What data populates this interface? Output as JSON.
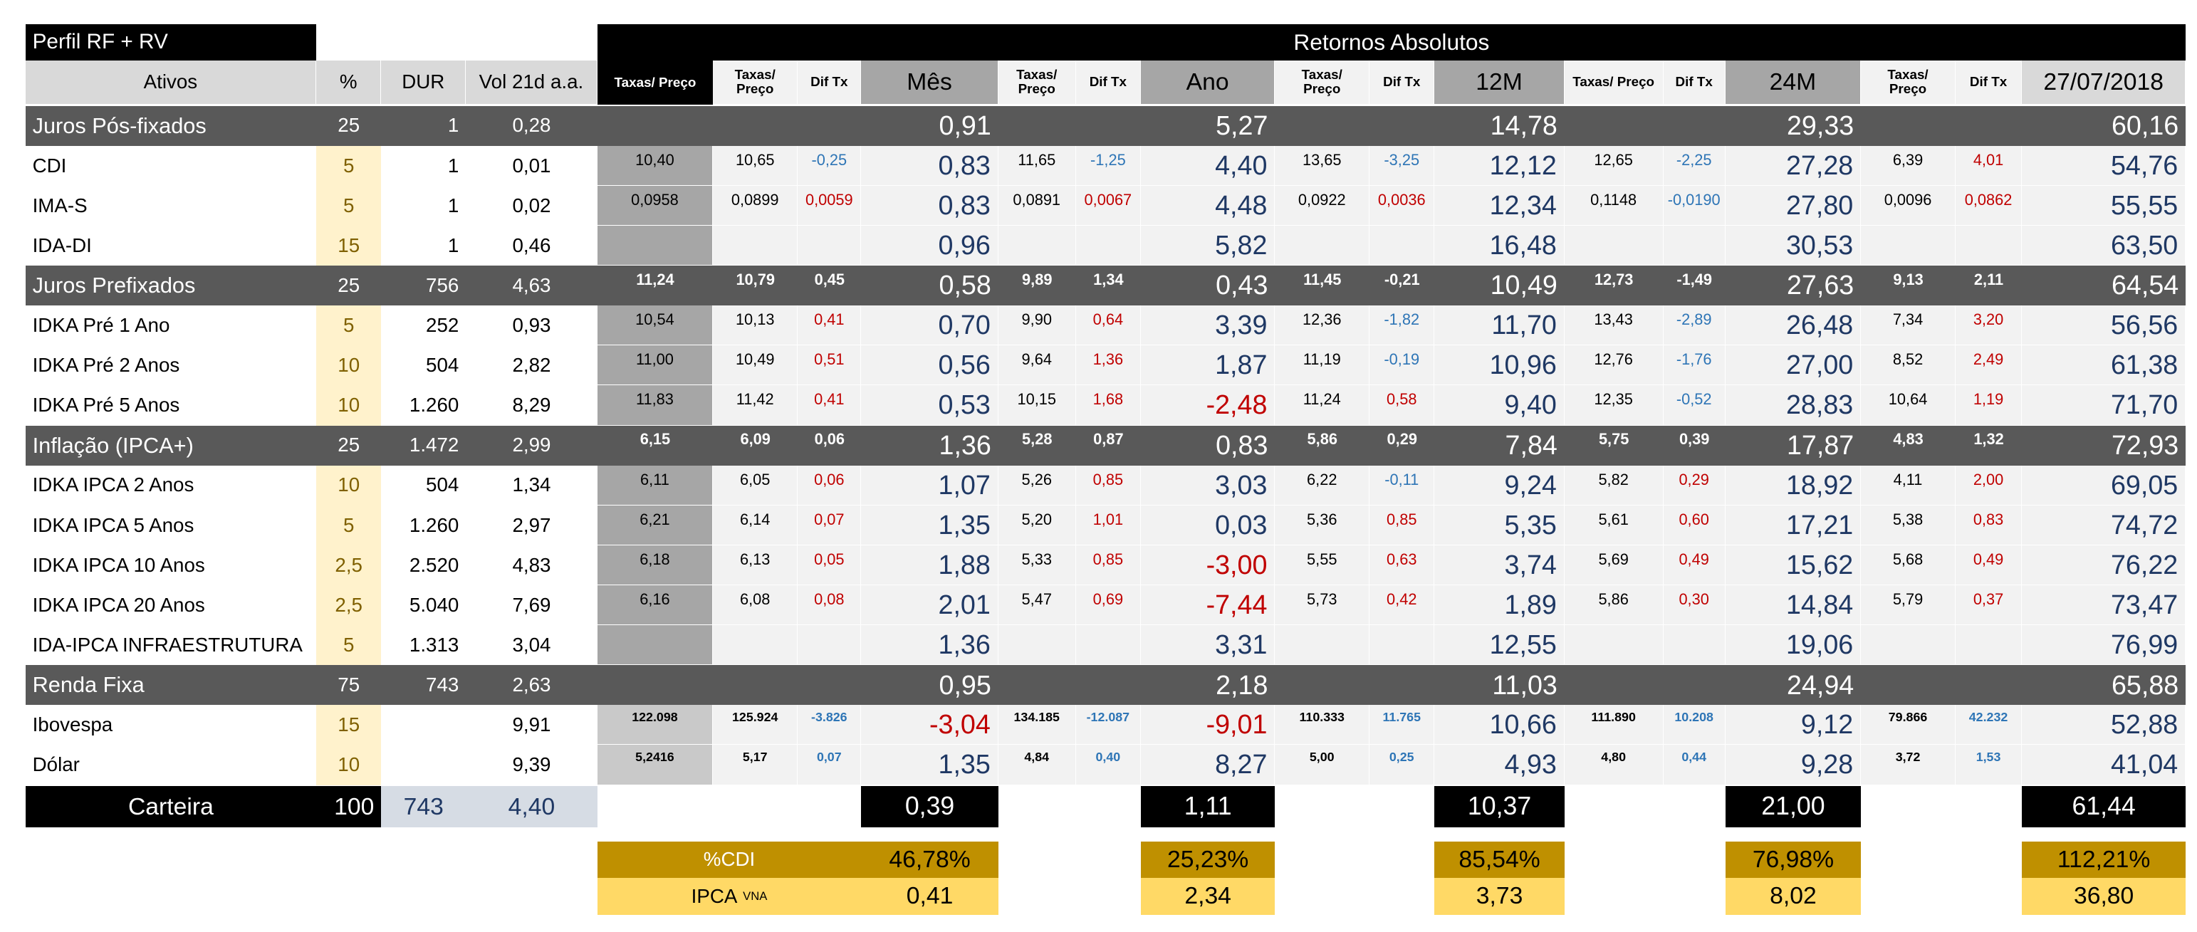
{
  "header": {
    "title": "Perfil RF + RV",
    "section_title": "Retornos Absolutos"
  },
  "columns": [
    "Ativos",
    "%",
    "DUR",
    "Vol 21d a.a.",
    "Taxas/ Preço",
    "Taxas/ Preço",
    "Dif Tx",
    "Mês",
    "Taxas/ Preço",
    "Dif Tx",
    "Ano",
    "Taxas/ Preço",
    "Dif Tx",
    "12M",
    "Taxas/ Preço",
    "Dif Tx",
    "24M",
    "Taxas/ Preço",
    "Dif Tx",
    "27/07/2018"
  ],
  "rows": [
    [
      "Juros Pós-fixados",
      "25",
      "1",
      "0,28",
      null,
      null,
      null,
      "0,91",
      null,
      null,
      "5,27",
      null,
      null,
      "14,78",
      null,
      null,
      "29,33",
      null,
      null,
      "60,16"
    ],
    [
      "CDI",
      "5",
      "1",
      "0,01",
      "10,40",
      "10,65",
      "-0,25",
      "0,83",
      "11,65",
      "-1,25",
      "4,40",
      "13,65",
      "-3,25",
      "12,12",
      "12,65",
      "-2,25",
      "27,28",
      "6,39",
      "4,01",
      "54,76"
    ],
    [
      "IMA-S",
      "5",
      "1",
      "0,02",
      "0,0958",
      "0,0899",
      "0,0059",
      "0,83",
      "0,0891",
      "0,0067",
      "4,48",
      "0,0922",
      "0,0036",
      "12,34",
      "0,1148",
      "-0,0190",
      "27,80",
      "0,0096",
      "0,0862",
      "55,55"
    ],
    [
      "IDA-DI",
      "15",
      "1",
      "0,46",
      null,
      null,
      null,
      "0,96",
      null,
      null,
      "5,82",
      null,
      null,
      "16,48",
      null,
      null,
      "30,53",
      null,
      null,
      "63,50"
    ],
    [
      "Juros Prefixados",
      "25",
      "756",
      "4,63",
      "11,24",
      "10,79",
      "0,45",
      "0,58",
      "9,89",
      "1,34",
      "0,43",
      "11,45",
      "-0,21",
      "10,49",
      "12,73",
      "-1,49",
      "27,63",
      "9,13",
      "2,11",
      "64,54"
    ],
    [
      "IDKA Pré 1 Ano",
      "5",
      "252",
      "0,93",
      "10,54",
      "10,13",
      "0,41",
      "0,70",
      "9,90",
      "0,64",
      "3,39",
      "12,36",
      "-1,82",
      "11,70",
      "13,43",
      "-2,89",
      "26,48",
      "7,34",
      "3,20",
      "56,56"
    ],
    [
      "IDKA Pré 2 Anos",
      "10",
      "504",
      "2,82",
      "11,00",
      "10,49",
      "0,51",
      "0,56",
      "9,64",
      "1,36",
      "1,87",
      "11,19",
      "-0,19",
      "10,96",
      "12,76",
      "-1,76",
      "27,00",
      "8,52",
      "2,49",
      "61,38"
    ],
    [
      "IDKA Pré 5 Anos",
      "10",
      "1.260",
      "8,29",
      "11,83",
      "11,42",
      "0,41",
      "0,53",
      "10,15",
      "1,68",
      "-2,48",
      "11,24",
      "0,58",
      "9,40",
      "12,35",
      "-0,52",
      "28,83",
      "10,64",
      "1,19",
      "71,70"
    ],
    [
      "Inflação (IPCA+)",
      "25",
      "1.472",
      "2,99",
      "6,15",
      "6,09",
      "0,06",
      "1,36",
      "5,28",
      "0,87",
      "0,83",
      "5,86",
      "0,29",
      "7,84",
      "5,75",
      "0,39",
      "17,87",
      "4,83",
      "1,32",
      "72,93"
    ],
    [
      "IDKA IPCA 2 Anos",
      "10",
      "504",
      "1,34",
      "6,11",
      "6,05",
      "0,06",
      "1,07",
      "5,26",
      "0,85",
      "3,03",
      "6,22",
      "-0,11",
      "9,24",
      "5,82",
      "0,29",
      "18,92",
      "4,11",
      "2,00",
      "69,05"
    ],
    [
      "IDKA IPCA 5 Anos",
      "5",
      "1.260",
      "2,97",
      "6,21",
      "6,14",
      "0,07",
      "1,35",
      "5,20",
      "1,01",
      "0,03",
      "5,36",
      "0,85",
      "5,35",
      "5,61",
      "0,60",
      "17,21",
      "5,38",
      "0,83",
      "74,72"
    ],
    [
      "IDKA IPCA 10 Anos",
      "2,5",
      "2.520",
      "4,83",
      "6,18",
      "6,13",
      "0,05",
      "1,88",
      "5,33",
      "0,85",
      "-3,00",
      "5,55",
      "0,63",
      "3,74",
      "5,69",
      "0,49",
      "15,62",
      "5,68",
      "0,49",
      "76,22"
    ],
    [
      "IDKA IPCA 20 Anos",
      "2,5",
      "5.040",
      "7,69",
      "6,16",
      "6,08",
      "0,08",
      "2,01",
      "5,47",
      "0,69",
      "-7,44",
      "5,73",
      "0,42",
      "1,89",
      "5,86",
      "0,30",
      "14,84",
      "5,79",
      "0,37",
      "73,47"
    ],
    [
      "IDA-IPCA INFRAESTRUTURA",
      "5",
      "1.313",
      "3,04",
      null,
      null,
      null,
      "1,36",
      null,
      null,
      "3,31",
      null,
      null,
      "12,55",
      null,
      null,
      "19,06",
      null,
      null,
      "76,99"
    ],
    [
      "Renda Fixa",
      "75",
      "743",
      "2,63",
      null,
      null,
      null,
      "0,95",
      null,
      null,
      "2,18",
      null,
      null,
      "11,03",
      null,
      null,
      "24,94",
      null,
      null,
      "65,88"
    ],
    [
      "Ibovespa",
      "15",
      null,
      "9,91",
      "122.098",
      "125.924",
      "-3.826",
      "-3,04",
      "134.185",
      "-12.087",
      "-9,01",
      "110.333",
      "11.765",
      "10,66",
      "111.890",
      "10.208",
      "9,12",
      "79.866",
      "42.232",
      "52,88"
    ],
    [
      "Dólar",
      "10",
      null,
      "9,39",
      "5,2416",
      "5,17",
      "0,07",
      "1,35",
      "4,84",
      "0,40",
      "8,27",
      "5,00",
      "0,25",
      "4,93",
      "4,80",
      "0,44",
      "9,28",
      "3,72",
      "1,53",
      "41,04"
    ]
  ],
  "carteira": {
    "label": "Carteira",
    "pct": "100",
    "dur": "743",
    "vol": "4,40",
    "returns": [
      "0,39",
      "1,11",
      "10,37",
      "21,00",
      "61,44"
    ]
  },
  "cdi_ratio": {
    "label": "%CDI",
    "values": [
      "46,78%",
      "25,23%",
      "85,54%",
      "76,98%",
      "112,21%"
    ]
  },
  "ipca_vna": {
    "label": "IPCA",
    "label_sup": "VNA",
    "values": [
      "0,41",
      "2,34",
      "3,73",
      "8,02",
      "36,80"
    ]
  }
}
